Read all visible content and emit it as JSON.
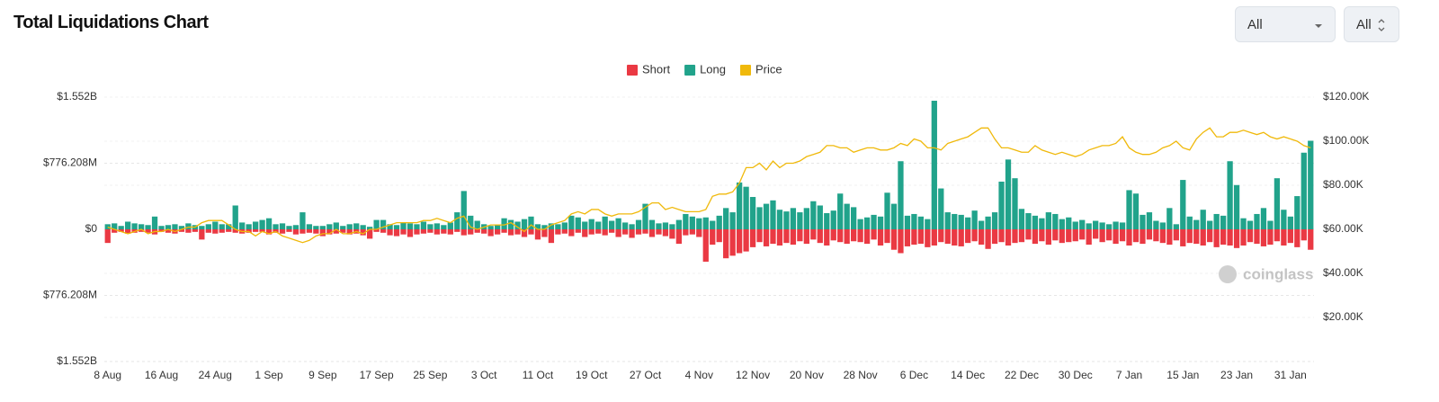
{
  "ui": {
    "title": "Total Liquidations Chart",
    "filters": [
      "All",
      "All"
    ]
  },
  "chart_data": {
    "type": "bar",
    "legend": "top",
    "grid": true,
    "watermark": "coinglass",
    "categories": [
      "8 Aug",
      null,
      null,
      null,
      null,
      null,
      null,
      null,
      "16 Aug",
      null,
      null,
      null,
      null,
      null,
      null,
      null,
      "24 Aug",
      null,
      null,
      null,
      null,
      null,
      null,
      null,
      "1 Sep",
      null,
      null,
      null,
      null,
      null,
      null,
      null,
      "9 Sep",
      null,
      null,
      null,
      null,
      null,
      null,
      null,
      "17 Sep",
      null,
      null,
      null,
      null,
      null,
      null,
      null,
      "25 Sep",
      null,
      null,
      null,
      null,
      null,
      null,
      null,
      "3 Oct",
      null,
      null,
      null,
      null,
      null,
      null,
      null,
      "11 Oct",
      null,
      null,
      null,
      null,
      null,
      null,
      null,
      "19 Oct",
      null,
      null,
      null,
      null,
      null,
      null,
      null,
      "27 Oct",
      null,
      null,
      null,
      null,
      null,
      null,
      null,
      "4 Nov",
      null,
      null,
      null,
      null,
      null,
      null,
      null,
      "12 Nov",
      null,
      null,
      null,
      null,
      null,
      null,
      null,
      "20 Nov",
      null,
      null,
      null,
      null,
      null,
      null,
      null,
      "28 Nov",
      null,
      null,
      null,
      null,
      null,
      null,
      null,
      "6 Dec",
      null,
      null,
      null,
      null,
      null,
      null,
      null,
      "14 Dec",
      null,
      null,
      null,
      null,
      null,
      null,
      null,
      "22 Dec",
      null,
      null,
      null,
      null,
      null,
      null,
      null,
      "30 Dec",
      null,
      null,
      null,
      null,
      null,
      null,
      null,
      "7 Jan",
      null,
      null,
      null,
      null,
      null,
      null,
      null,
      "15 Jan",
      null,
      null,
      null,
      null,
      null,
      null,
      null,
      "23 Jan",
      null,
      null,
      null,
      null,
      null,
      null,
      null,
      "31 Jan",
      null,
      null,
      null
    ],
    "series": [
      {
        "name": "Short",
        "color": "#ea3943",
        "values": [
          -160000000,
          -40000000,
          -30000000,
          -50000000,
          -40000000,
          -30000000,
          -40000000,
          -60000000,
          -30000000,
          -40000000,
          -50000000,
          -30000000,
          -40000000,
          -30000000,
          -120000000,
          -40000000,
          -50000000,
          -40000000,
          -30000000,
          -40000000,
          -50000000,
          -40000000,
          -30000000,
          -30000000,
          -60000000,
          -40000000,
          -50000000,
          -30000000,
          -60000000,
          -50000000,
          -40000000,
          -50000000,
          -80000000,
          -60000000,
          -50000000,
          -40000000,
          -60000000,
          -50000000,
          -70000000,
          -110000000,
          -30000000,
          -40000000,
          -70000000,
          -80000000,
          -60000000,
          -90000000,
          -60000000,
          -50000000,
          -40000000,
          -60000000,
          -50000000,
          -60000000,
          -30000000,
          -70000000,
          -60000000,
          -40000000,
          -50000000,
          -80000000,
          -60000000,
          -40000000,
          -70000000,
          -60000000,
          -90000000,
          -60000000,
          -120000000,
          -90000000,
          -160000000,
          -60000000,
          -50000000,
          -80000000,
          -40000000,
          -90000000,
          -60000000,
          -50000000,
          -70000000,
          -40000000,
          -90000000,
          -60000000,
          -100000000,
          -60000000,
          -50000000,
          -90000000,
          -60000000,
          -80000000,
          -110000000,
          -170000000,
          -70000000,
          -60000000,
          -90000000,
          -380000000,
          -180000000,
          -150000000,
          -340000000,
          -310000000,
          -280000000,
          -260000000,
          -210000000,
          -150000000,
          -200000000,
          -170000000,
          -190000000,
          -160000000,
          -180000000,
          -140000000,
          -170000000,
          -120000000,
          -160000000,
          -190000000,
          -130000000,
          -150000000,
          -170000000,
          -140000000,
          -150000000,
          -170000000,
          -120000000,
          -190000000,
          -160000000,
          -240000000,
          -280000000,
          -200000000,
          -180000000,
          -170000000,
          -210000000,
          -190000000,
          -150000000,
          -170000000,
          -190000000,
          -200000000,
          -160000000,
          -140000000,
          -180000000,
          -230000000,
          -170000000,
          -150000000,
          -190000000,
          -160000000,
          -150000000,
          -120000000,
          -170000000,
          -140000000,
          -180000000,
          -130000000,
          -160000000,
          -150000000,
          -140000000,
          -120000000,
          -180000000,
          -110000000,
          -150000000,
          -130000000,
          -170000000,
          -140000000,
          -190000000,
          -150000000,
          -170000000,
          -120000000,
          -140000000,
          -160000000,
          -180000000,
          -130000000,
          -200000000,
          -160000000,
          -170000000,
          -190000000,
          -150000000,
          -210000000,
          -180000000,
          -190000000,
          -220000000,
          -190000000,
          -150000000,
          -170000000,
          -200000000,
          -180000000,
          -140000000,
          -190000000,
          -160000000,
          -210000000,
          -130000000,
          -240000000
        ]
      },
      {
        "name": "Long",
        "color": "#21a38b",
        "values": [
          60000000,
          70000000,
          40000000,
          90000000,
          70000000,
          60000000,
          50000000,
          150000000,
          40000000,
          50000000,
          60000000,
          40000000,
          70000000,
          50000000,
          40000000,
          60000000,
          90000000,
          60000000,
          60000000,
          280000000,
          80000000,
          60000000,
          90000000,
          110000000,
          130000000,
          60000000,
          70000000,
          40000000,
          50000000,
          200000000,
          60000000,
          40000000,
          40000000,
          60000000,
          80000000,
          40000000,
          60000000,
          70000000,
          50000000,
          30000000,
          110000000,
          110000000,
          60000000,
          50000000,
          80000000,
          70000000,
          60000000,
          90000000,
          60000000,
          70000000,
          50000000,
          80000000,
          200000000,
          450000000,
          160000000,
          100000000,
          60000000,
          40000000,
          50000000,
          130000000,
          110000000,
          90000000,
          120000000,
          150000000,
          60000000,
          50000000,
          70000000,
          60000000,
          80000000,
          160000000,
          140000000,
          90000000,
          120000000,
          90000000,
          150000000,
          100000000,
          130000000,
          80000000,
          60000000,
          110000000,
          300000000,
          110000000,
          70000000,
          80000000,
          60000000,
          110000000,
          180000000,
          150000000,
          130000000,
          140000000,
          100000000,
          160000000,
          250000000,
          200000000,
          550000000,
          500000000,
          380000000,
          260000000,
          300000000,
          340000000,
          230000000,
          210000000,
          250000000,
          200000000,
          250000000,
          330000000,
          280000000,
          190000000,
          220000000,
          420000000,
          300000000,
          260000000,
          120000000,
          140000000,
          170000000,
          150000000,
          430000000,
          300000000,
          800000000,
          160000000,
          180000000,
          150000000,
          120000000,
          1510000000,
          480000000,
          200000000,
          180000000,
          170000000,
          140000000,
          220000000,
          100000000,
          150000000,
          200000000,
          560000000,
          820000000,
          600000000,
          240000000,
          190000000,
          160000000,
          130000000,
          200000000,
          180000000,
          120000000,
          140000000,
          90000000,
          110000000,
          70000000,
          100000000,
          80000000,
          60000000,
          90000000,
          80000000,
          460000000,
          420000000,
          170000000,
          200000000,
          100000000,
          80000000,
          250000000,
          60000000,
          580000000,
          150000000,
          110000000,
          230000000,
          100000000,
          180000000,
          160000000,
          800000000,
          520000000,
          130000000,
          100000000,
          180000000,
          250000000,
          100000000,
          600000000,
          230000000,
          150000000,
          390000000,
          900000000,
          1040000000
        ]
      },
      {
        "name": "Price",
        "color": "#f0b90b",
        "type": "line",
        "axis": "y2",
        "values": [
          61000,
          60000,
          59000,
          58000,
          59000,
          60000,
          58000,
          59000,
          59000,
          60000,
          59000,
          60000,
          61000,
          61000,
          63000,
          64000,
          64000,
          64000,
          62000,
          60000,
          59000,
          59000,
          57000,
          59000,
          58000,
          59000,
          57000,
          56000,
          55000,
          54000,
          55000,
          57000,
          58000,
          58000,
          60000,
          58000,
          58000,
          59000,
          58000,
          60000,
          60000,
          61000,
          62000,
          63000,
          63000,
          63000,
          63000,
          64000,
          64000,
          65000,
          64000,
          63000,
          65000,
          66000,
          61000,
          60000,
          61000,
          62000,
          62000,
          62000,
          63000,
          61000,
          59000,
          62000,
          60000,
          60000,
          62000,
          63000,
          64000,
          67000,
          68000,
          67000,
          69000,
          69000,
          67000,
          66000,
          67000,
          67000,
          67000,
          68000,
          70000,
          72000,
          72000,
          69000,
          70000,
          69000,
          68000,
          68000,
          68000,
          69000,
          75000,
          76000,
          76000,
          77000,
          81000,
          88000,
          88000,
          90000,
          87000,
          91000,
          88000,
          90000,
          90000,
          91000,
          93000,
          94000,
          95000,
          98000,
          98000,
          97000,
          97000,
          95000,
          96000,
          97000,
          97000,
          96000,
          96000,
          97000,
          99000,
          98000,
          101000,
          100000,
          97000,
          97000,
          96000,
          99000,
          100000,
          101000,
          102000,
          104000,
          106000,
          106000,
          101000,
          97000,
          97000,
          96000,
          95000,
          95000,
          98000,
          96000,
          95000,
          94000,
          95000,
          94000,
          93000,
          94000,
          96000,
          97000,
          98000,
          98000,
          99000,
          102000,
          97000,
          95000,
          94000,
          94000,
          95000,
          97000,
          98000,
          100000,
          97000,
          96000,
          101000,
          104000,
          106000,
          102000,
          102000,
          104000,
          104000,
          105000,
          104000,
          103000,
          104000,
          102000,
          101000,
          102000,
          101000,
          100000,
          98000,
          97000
        ]
      }
    ],
    "ylim": [
      -1552416000,
      1552416000
    ],
    "yticks": [
      {
        "value": -1552416000,
        "label": "$1.552B"
      },
      {
        "value": -776208000,
        "label": "$776.208M"
      },
      {
        "value": 0,
        "label": "$0"
      },
      {
        "value": 776208000,
        "label": "$776.208M"
      },
      {
        "value": 1552416000,
        "label": "$1.552B"
      }
    ],
    "y2lim": [
      0,
      120000
    ],
    "y2ticks": [
      {
        "value": 20000,
        "label": "$20.00K"
      },
      {
        "value": 40000,
        "label": "$40.00K"
      },
      {
        "value": 60000,
        "label": "$60.00K"
      },
      {
        "value": 80000,
        "label": "$80.00K"
      },
      {
        "value": 100000,
        "label": "$100.00K"
      },
      {
        "value": 120000,
        "label": "$120.00K"
      }
    ]
  }
}
